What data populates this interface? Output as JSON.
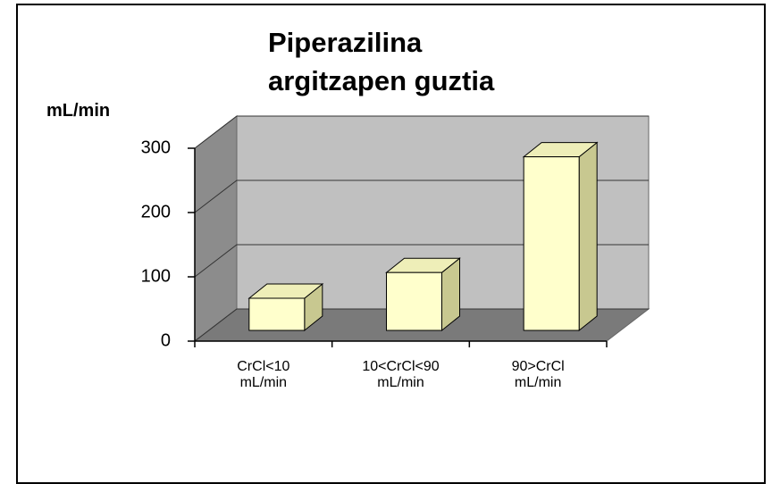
{
  "chart_data": {
    "type": "bar3d",
    "title": "Piperazilina argitzapen guztia",
    "y_label": "mL/min",
    "categories": [
      "CrCl<10 mL/min",
      "10<CrCl<90 mL/min",
      "90>CrCl mL/min"
    ],
    "values": [
      50,
      90,
      270
    ],
    "color": "#ffffcc",
    "ylim": [
      0,
      300
    ],
    "yticks": [
      0,
      100,
      200,
      300
    ],
    "grid": true
  }
}
